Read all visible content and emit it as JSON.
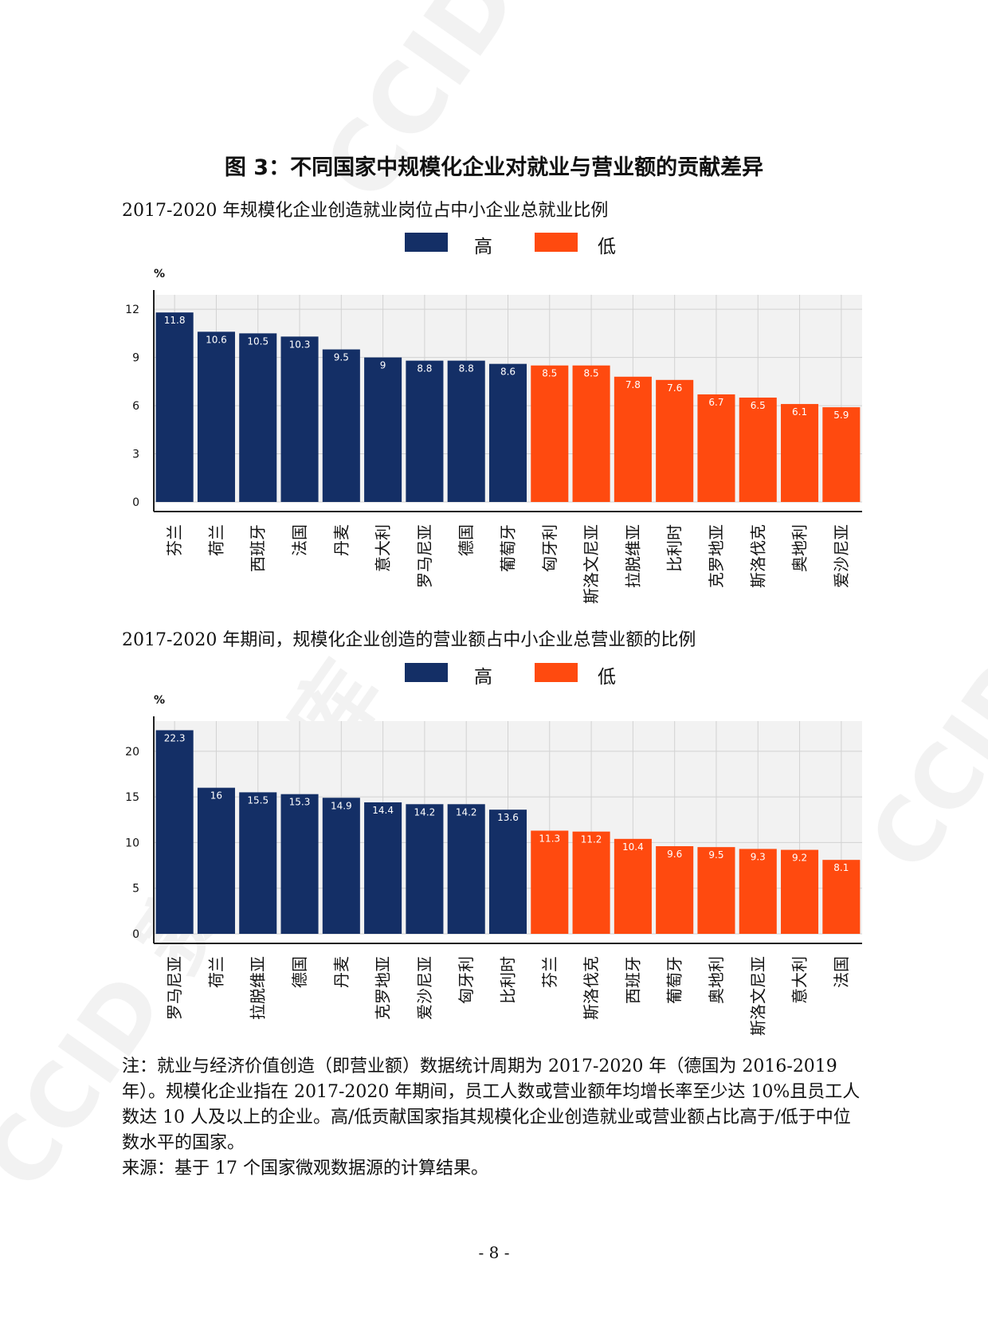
{
  "page": {
    "figure_title": "图 3：不同国家中规模化企业对就业与营业额的贡献差异",
    "subtitle_1": "2017-2020 年规模化企业创造就业岗位占中小企业总就业比例",
    "subtitle_2": "2017-2020 年期间，规模化企业创造的营业额占中小企业总营业额的比例",
    "legend_high": "高",
    "legend_low": "低",
    "note": "注：就业与经济价值创造（即营业额）数据统计周期为 2017-2020 年（德国为 2016-2019 年）。规模化企业指在 2017-2020 年期间，员工人数或营业额年均增长率至少达 10%且员工人数达 10 人及以上的企业。高/低贡献国家指其规模化企业创造就业或营业额占比高于/低于中位数水平的国家。",
    "source": "来源：基于 17 个国家微观数据源的计算结果。",
    "page_number": "- 8 -",
    "watermark_text": "CCID 赛迪智库"
  },
  "colors": {
    "high": "#142f66",
    "low": "#ff4a0f",
    "plot_bg": "#f2f2f2",
    "grid": "#d2d2d2"
  },
  "chart_data": [
    {
      "type": "bar",
      "title": "2017-2020 年规模化企业创造就业岗位占中小企业总就业比例",
      "ylabel": "%",
      "ylim": [
        0,
        12.9
      ],
      "yticks": [
        0,
        3,
        6,
        9,
        12
      ],
      "categories": [
        "芬兰",
        "荷兰",
        "西班牙",
        "法国",
        "丹麦",
        "意大利",
        "罗马尼亚",
        "德国",
        "葡萄牙",
        "匈牙利",
        "斯洛文尼亚",
        "拉脱维亚",
        "比利时",
        "克罗地亚",
        "斯洛伐克",
        "奥地利",
        "爱沙尼亚"
      ],
      "values": [
        11.8,
        10.6,
        10.5,
        10.3,
        9.5,
        9,
        8.8,
        8.8,
        8.6,
        8.5,
        8.5,
        7.8,
        7.6,
        6.7,
        6.5,
        6.1,
        5.9
      ],
      "value_labels": [
        "11.8",
        "10.6",
        "10.5",
        "10.3",
        "9.5",
        "9",
        "8.8",
        "8.8",
        "8.6",
        "8.5",
        "8.5",
        "7.8",
        "7.6",
        "6.7",
        "6.5",
        "6.1",
        "5.9"
      ],
      "groups": [
        "high",
        "high",
        "high",
        "high",
        "high",
        "high",
        "high",
        "high",
        "high",
        "low",
        "low",
        "low",
        "low",
        "low",
        "low",
        "low",
        "low"
      ],
      "legend": [
        "高",
        "低"
      ],
      "grid": true
    },
    {
      "type": "bar",
      "title": "2017-2020 年期间，规模化企业创造的营业额占中小企业总营业额的比例",
      "ylabel": "%",
      "ylim": [
        0,
        23.3
      ],
      "yticks": [
        0,
        5,
        10,
        15,
        20
      ],
      "categories": [
        "罗马尼亚",
        "荷兰",
        "拉脱维亚",
        "德国",
        "丹麦",
        "克罗地亚",
        "爱沙尼亚",
        "匈牙利",
        "比利时",
        "芬兰",
        "斯洛伐克",
        "西班牙",
        "葡萄牙",
        "奥地利",
        "斯洛文尼亚",
        "意大利",
        "法国"
      ],
      "values": [
        22.3,
        16,
        15.5,
        15.3,
        14.9,
        14.4,
        14.2,
        14.2,
        13.6,
        11.3,
        11.2,
        10.4,
        9.6,
        9.5,
        9.3,
        9.2,
        8.1
      ],
      "value_labels": [
        "22.3",
        "16",
        "15.5",
        "15.3",
        "14.9",
        "14.4",
        "14.2",
        "14.2",
        "13.6",
        "11.3",
        "11.2",
        "10.4",
        "9.6",
        "9.5",
        "9.3",
        "9.2",
        "8.1"
      ],
      "groups": [
        "high",
        "high",
        "high",
        "high",
        "high",
        "high",
        "high",
        "high",
        "high",
        "low",
        "low",
        "low",
        "low",
        "low",
        "low",
        "low",
        "low"
      ],
      "legend": [
        "高",
        "低"
      ],
      "grid": true
    }
  ]
}
